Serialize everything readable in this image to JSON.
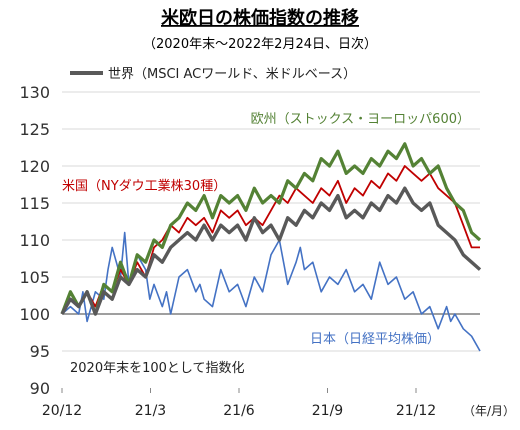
{
  "chart_data": {
    "type": "line",
    "title": "米欧日の株価指数の推移",
    "subtitle": "（2020年末〜2022年2月24日、日次）",
    "note": "2020年末を100として指数化",
    "x_unit": "（年/月）",
    "xticks": [
      "20/12",
      "21/3",
      "21/6",
      "21/9",
      "21/12"
    ],
    "yticks": [
      90,
      95,
      100,
      105,
      110,
      115,
      120,
      125,
      130
    ],
    "ylim": [
      90,
      130
    ],
    "xlim": [
      0,
      100
    ],
    "grid": "horizontal",
    "series": [
      {
        "name": "日本（日経平均株価）",
        "color": "#4472c4",
        "x": [
          0,
          2,
          4,
          5,
          6,
          8,
          10,
          11,
          12,
          14,
          15,
          16,
          18,
          20,
          21,
          22,
          24,
          25,
          26,
          28,
          30,
          32,
          33,
          34,
          36,
          38,
          40,
          42,
          44,
          46,
          48,
          50,
          52,
          54,
          56,
          57,
          58,
          60,
          62,
          64,
          66,
          68,
          70,
          72,
          74,
          76,
          78,
          80,
          82,
          84,
          86,
          88,
          90,
          92,
          93,
          94,
          96,
          98,
          100
        ],
        "values": [
          100,
          101,
          100,
          103,
          99,
          103,
          102,
          106,
          109,
          105,
          111,
          104,
          108,
          106,
          102,
          104,
          101,
          103,
          100,
          105,
          106,
          103,
          104,
          102,
          101,
          106,
          103,
          104,
          101,
          105,
          103,
          108,
          110,
          104,
          107,
          109,
          106,
          107,
          103,
          105,
          104,
          106,
          103,
          104,
          102,
          107,
          104,
          105,
          102,
          103,
          100,
          101,
          98,
          101,
          99,
          100,
          98,
          97,
          95
        ]
      },
      {
        "name": "米国（NYダウ工業株30種）",
        "color": "#c00000",
        "x": [
          0,
          2,
          4,
          6,
          8,
          10,
          12,
          14,
          16,
          18,
          20,
          22,
          24,
          26,
          28,
          30,
          32,
          34,
          36,
          38,
          40,
          42,
          44,
          46,
          48,
          50,
          52,
          54,
          56,
          58,
          60,
          62,
          64,
          66,
          68,
          70,
          72,
          74,
          76,
          78,
          80,
          82,
          84,
          86,
          88,
          90,
          92,
          94,
          96,
          98,
          100
        ],
        "values": [
          100,
          102,
          101,
          103,
          101,
          104,
          103,
          106,
          104,
          107,
          105,
          109,
          110,
          112,
          111,
          113,
          112,
          113,
          111,
          114,
          113,
          114,
          112,
          113,
          112,
          114,
          116,
          115,
          117,
          116,
          115,
          117,
          116,
          118,
          115,
          117,
          116,
          118,
          117,
          119,
          118,
          120,
          119,
          118,
          119,
          117,
          116,
          115,
          112,
          109,
          109
        ]
      },
      {
        "name": "欧州（ストックス・ヨーロッパ600）",
        "color": "#548235",
        "x": [
          0,
          2,
          4,
          6,
          8,
          10,
          12,
          14,
          16,
          18,
          20,
          22,
          24,
          26,
          28,
          30,
          32,
          34,
          36,
          38,
          40,
          42,
          44,
          46,
          48,
          50,
          52,
          54,
          56,
          58,
          60,
          62,
          64,
          66,
          68,
          70,
          72,
          74,
          76,
          78,
          80,
          82,
          84,
          86,
          88,
          90,
          92,
          94,
          96,
          98,
          100
        ],
        "values": [
          100,
          103,
          101,
          103,
          100,
          104,
          103,
          107,
          104,
          108,
          107,
          110,
          109,
          112,
          113,
          115,
          114,
          116,
          113,
          116,
          115,
          116,
          114,
          117,
          115,
          116,
          115,
          118,
          117,
          119,
          118,
          121,
          120,
          122,
          119,
          120,
          119,
          121,
          120,
          122,
          121,
          123,
          120,
          121,
          119,
          120,
          117,
          115,
          114,
          111,
          110
        ]
      },
      {
        "name": "世界（MSCI ACワールド、米ドルベース）",
        "color": "#595959",
        "x": [
          0,
          2,
          4,
          6,
          8,
          10,
          12,
          14,
          16,
          18,
          20,
          22,
          24,
          26,
          28,
          30,
          32,
          34,
          36,
          38,
          40,
          42,
          44,
          46,
          48,
          50,
          52,
          54,
          56,
          58,
          60,
          62,
          64,
          66,
          68,
          70,
          72,
          74,
          76,
          78,
          80,
          82,
          84,
          86,
          88,
          90,
          92,
          94,
          96,
          98,
          100
        ],
        "values": [
          100,
          102,
          101,
          103,
          100,
          103,
          102,
          105,
          104,
          106,
          105,
          108,
          107,
          109,
          110,
          111,
          110,
          112,
          110,
          112,
          111,
          112,
          110,
          113,
          111,
          112,
          110,
          113,
          112,
          114,
          113,
          115,
          114,
          116,
          113,
          114,
          113,
          115,
          114,
          116,
          115,
          117,
          115,
          114,
          115,
          112,
          111,
          110,
          108,
          107,
          106
        ]
      }
    ]
  },
  "legend": {
    "world_label": "世界（MSCI ACワールド、米ドルベース）"
  },
  "labels": {
    "europe": "欧州（ストックス・ヨーロッパ600）",
    "us": "米国（NYダウ工業株30種）",
    "japan": "日本（日経平均株価）"
  }
}
